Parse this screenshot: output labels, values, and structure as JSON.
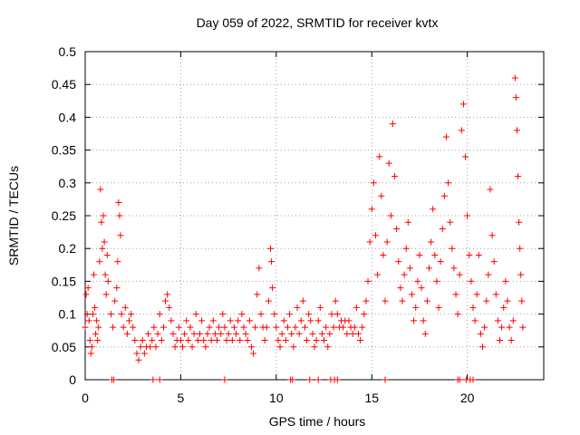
{
  "chart_data": {
    "type": "scatter",
    "title": "Day 059 of 2022, SRMTID for receiver kvtx",
    "xlabel": "GPS time / hours",
    "ylabel": "SRMTID / TECUs",
    "xlim": [
      0,
      24
    ],
    "ylim": [
      0,
      0.5
    ],
    "x_ticks": [
      0,
      5,
      10,
      15,
      20
    ],
    "y_ticks": [
      0,
      0.05,
      0.1,
      0.15,
      0.2,
      0.25,
      0.3,
      0.35,
      0.4,
      0.45,
      0.5
    ],
    "grid": true,
    "marker": "plus",
    "series": [
      {
        "color": "#ff0000",
        "points": [
          [
            0.0,
            0.08
          ],
          [
            0.05,
            0.13
          ],
          [
            0.1,
            0.1
          ],
          [
            0.15,
            0.14
          ],
          [
            0.2,
            0.09
          ],
          [
            0.25,
            0.06
          ],
          [
            0.3,
            0.04
          ],
          [
            0.35,
            0.05
          ],
          [
            0.4,
            0.1
          ],
          [
            0.45,
            0.16
          ],
          [
            0.5,
            0.11
          ],
          [
            0.55,
            0.07
          ],
          [
            0.6,
            0.09
          ],
          [
            0.65,
            0.06
          ],
          [
            0.7,
            0.08
          ],
          [
            0.75,
            0.18
          ],
          [
            0.8,
            0.29
          ],
          [
            0.85,
            0.24
          ],
          [
            0.9,
            0.2
          ],
          [
            0.95,
            0.25
          ],
          [
            1.0,
            0.21
          ],
          [
            1.05,
            0.16
          ],
          [
            1.1,
            0.13
          ],
          [
            1.15,
            0.19
          ],
          [
            1.2,
            0.15
          ],
          [
            1.35,
            0.1
          ],
          [
            1.45,
            0.08
          ],
          [
            1.55,
            0.12
          ],
          [
            1.65,
            0.14
          ],
          [
            1.7,
            0.18
          ],
          [
            1.75,
            0.27
          ],
          [
            1.8,
            0.25
          ],
          [
            1.85,
            0.22
          ],
          [
            1.9,
            0.1
          ],
          [
            2.0,
            0.08
          ],
          [
            2.1,
            0.11
          ],
          [
            2.2,
            0.07
          ],
          [
            2.3,
            0.09
          ],
          [
            2.4,
            0.1
          ],
          [
            2.5,
            0.08
          ],
          [
            2.6,
            0.06
          ],
          [
            2.7,
            0.04
          ],
          [
            2.8,
            0.03
          ],
          [
            2.9,
            0.05
          ],
          [
            3.0,
            0.06
          ],
          [
            3.1,
            0.04
          ],
          [
            3.2,
            0.05
          ],
          [
            3.3,
            0.07
          ],
          [
            3.4,
            0.05
          ],
          [
            3.5,
            0.06
          ],
          [
            3.6,
            0.08
          ],
          [
            3.7,
            0.05
          ],
          [
            3.8,
            0.07
          ],
          [
            3.9,
            0.1
          ],
          [
            4.0,
            0.06
          ],
          [
            4.1,
            0.08
          ],
          [
            4.2,
            0.12
          ],
          [
            4.3,
            0.13
          ],
          [
            4.4,
            0.11
          ],
          [
            4.5,
            0.09
          ],
          [
            4.6,
            0.07
          ],
          [
            4.7,
            0.05
          ],
          [
            4.8,
            0.06
          ],
          [
            4.9,
            0.08
          ],
          [
            5.0,
            0.06
          ],
          [
            5.1,
            0.05
          ],
          [
            5.2,
            0.07
          ],
          [
            5.3,
            0.09
          ],
          [
            5.4,
            0.06
          ],
          [
            5.5,
            0.08
          ],
          [
            5.6,
            0.05
          ],
          [
            5.7,
            0.07
          ],
          [
            5.8,
            0.1
          ],
          [
            5.9,
            0.06
          ],
          [
            6.0,
            0.07
          ],
          [
            6.1,
            0.09
          ],
          [
            6.2,
            0.06
          ],
          [
            6.3,
            0.05
          ],
          [
            6.4,
            0.07
          ],
          [
            6.5,
            0.08
          ],
          [
            6.6,
            0.06
          ],
          [
            6.7,
            0.09
          ],
          [
            6.8,
            0.07
          ],
          [
            6.9,
            0.06
          ],
          [
            7.0,
            0.08
          ],
          [
            7.1,
            0.07
          ],
          [
            7.2,
            0.1
          ],
          [
            7.3,
            0.08
          ],
          [
            7.4,
            0.06
          ],
          [
            7.5,
            0.07
          ],
          [
            7.6,
            0.09
          ],
          [
            7.7,
            0.06
          ],
          [
            7.8,
            0.08
          ],
          [
            7.9,
            0.07
          ],
          [
            8.0,
            0.09
          ],
          [
            8.1,
            0.06
          ],
          [
            8.2,
            0.1
          ],
          [
            8.3,
            0.08
          ],
          [
            8.4,
            0.07
          ],
          [
            8.5,
            0.06
          ],
          [
            8.6,
            0.09
          ],
          [
            8.7,
            0.05
          ],
          [
            8.8,
            0.04
          ],
          [
            8.9,
            0.08
          ],
          [
            9.0,
            0.13
          ],
          [
            9.1,
            0.17
          ],
          [
            9.2,
            0.1
          ],
          [
            9.3,
            0.08
          ],
          [
            9.4,
            0.06
          ],
          [
            9.5,
            0.08
          ],
          [
            9.6,
            0.12
          ],
          [
            9.7,
            0.2
          ],
          [
            9.75,
            0.18
          ],
          [
            9.8,
            0.14
          ],
          [
            9.9,
            0.1
          ],
          [
            10.0,
            0.08
          ],
          [
            10.1,
            0.06
          ],
          [
            10.2,
            0.05
          ],
          [
            10.3,
            0.07
          ],
          [
            10.4,
            0.09
          ],
          [
            10.5,
            0.06
          ],
          [
            10.6,
            0.08
          ],
          [
            10.7,
            0.1
          ],
          [
            10.8,
            0.07
          ],
          [
            10.9,
            0.05
          ],
          [
            11.0,
            0.08
          ],
          [
            11.1,
            0.11
          ],
          [
            11.2,
            0.07
          ],
          [
            11.3,
            0.09
          ],
          [
            11.4,
            0.12
          ],
          [
            11.5,
            0.08
          ],
          [
            11.6,
            0.06
          ],
          [
            11.7,
            0.1
          ],
          [
            11.8,
            0.09
          ],
          [
            11.9,
            0.07
          ],
          [
            12.0,
            0.05
          ],
          [
            12.1,
            0.06
          ],
          [
            12.2,
            0.09
          ],
          [
            12.3,
            0.11
          ],
          [
            12.4,
            0.07
          ],
          [
            12.5,
            0.06
          ],
          [
            12.6,
            0.08
          ],
          [
            12.7,
            0.05
          ],
          [
            12.8,
            0.07
          ],
          [
            12.9,
            0.1
          ],
          [
            13.0,
            0.08
          ],
          [
            13.1,
            0.12
          ],
          [
            13.2,
            0.1
          ],
          [
            13.3,
            0.08
          ],
          [
            13.4,
            0.09
          ],
          [
            13.5,
            0.08
          ],
          [
            13.6,
            0.09
          ],
          [
            13.7,
            0.07
          ],
          [
            13.8,
            0.09
          ],
          [
            13.9,
            0.08
          ],
          [
            14.0,
            0.07
          ],
          [
            14.1,
            0.08
          ],
          [
            14.2,
            0.11
          ],
          [
            14.3,
            0.07
          ],
          [
            14.4,
            0.06
          ],
          [
            14.5,
            0.08
          ],
          [
            14.6,
            0.1
          ],
          [
            14.7,
            0.12
          ],
          [
            14.8,
            0.15
          ],
          [
            14.9,
            0.21
          ],
          [
            15.0,
            0.26
          ],
          [
            15.1,
            0.3
          ],
          [
            15.2,
            0.22
          ],
          [
            15.3,
            0.16
          ],
          [
            15.4,
            0.34
          ],
          [
            15.5,
            0.28
          ],
          [
            15.6,
            0.19
          ],
          [
            15.7,
            0.12
          ],
          [
            15.8,
            0.21
          ],
          [
            15.9,
            0.33
          ],
          [
            16.0,
            0.25
          ],
          [
            16.1,
            0.39
          ],
          [
            16.2,
            0.31
          ],
          [
            16.3,
            0.23
          ],
          [
            16.4,
            0.18
          ],
          [
            16.5,
            0.14
          ],
          [
            16.6,
            0.12
          ],
          [
            16.7,
            0.16
          ],
          [
            16.8,
            0.2
          ],
          [
            16.9,
            0.24
          ],
          [
            17.0,
            0.17
          ],
          [
            17.1,
            0.13
          ],
          [
            17.2,
            0.09
          ],
          [
            17.3,
            0.11
          ],
          [
            17.4,
            0.15
          ],
          [
            17.5,
            0.19
          ],
          [
            17.6,
            0.14
          ],
          [
            17.7,
            0.09
          ],
          [
            17.8,
            0.07
          ],
          [
            17.9,
            0.12
          ],
          [
            18.0,
            0.17
          ],
          [
            18.1,
            0.21
          ],
          [
            18.2,
            0.26
          ],
          [
            18.3,
            0.19
          ],
          [
            18.4,
            0.15
          ],
          [
            18.5,
            0.11
          ],
          [
            18.6,
            0.18
          ],
          [
            18.7,
            0.23
          ],
          [
            18.8,
            0.28
          ],
          [
            18.9,
            0.37
          ],
          [
            19.0,
            0.3
          ],
          [
            19.1,
            0.24
          ],
          [
            19.2,
            0.2
          ],
          [
            19.3,
            0.17
          ],
          [
            19.4,
            0.13
          ],
          [
            19.5,
            0.1
          ],
          [
            19.6,
            0.16
          ],
          [
            19.7,
            0.38
          ],
          [
            19.8,
            0.42
          ],
          [
            19.9,
            0.34
          ],
          [
            20.0,
            0.25
          ],
          [
            20.1,
            0.19
          ],
          [
            20.2,
            0.15
          ],
          [
            20.3,
            0.11
          ],
          [
            20.4,
            0.09
          ],
          [
            20.5,
            0.13
          ],
          [
            20.6,
            0.19
          ],
          [
            20.7,
            0.07
          ],
          [
            20.8,
            0.05
          ],
          [
            20.9,
            0.08
          ],
          [
            21.0,
            0.12
          ],
          [
            21.1,
            0.16
          ],
          [
            21.2,
            0.29
          ],
          [
            21.3,
            0.22
          ],
          [
            21.4,
            0.18
          ],
          [
            21.5,
            0.13
          ],
          [
            21.6,
            0.09
          ],
          [
            21.7,
            0.06
          ],
          [
            21.8,
            0.08
          ],
          [
            21.9,
            0.11
          ],
          [
            22.0,
            0.15
          ],
          [
            22.1,
            0.12
          ],
          [
            22.2,
            0.08
          ],
          [
            22.3,
            0.06
          ],
          [
            22.4,
            0.09
          ],
          [
            22.5,
            0.46
          ],
          [
            22.55,
            0.43
          ],
          [
            22.6,
            0.38
          ],
          [
            22.65,
            0.31
          ],
          [
            22.7,
            0.24
          ],
          [
            22.75,
            0.2
          ],
          [
            22.8,
            0.16
          ],
          [
            22.85,
            0.12
          ],
          [
            22.9,
            0.08
          ],
          [
            1.4,
            0.0
          ],
          [
            1.5,
            0.0
          ],
          [
            3.55,
            0.0
          ],
          [
            3.9,
            0.0
          ],
          [
            7.3,
            0.0
          ],
          [
            10.75,
            0.0
          ],
          [
            10.85,
            0.0
          ],
          [
            11.75,
            0.0
          ],
          [
            12.2,
            0.0
          ],
          [
            12.85,
            0.0
          ],
          [
            13.05,
            0.0
          ],
          [
            13.2,
            0.0
          ],
          [
            15.7,
            0.0
          ],
          [
            19.5,
            0.0
          ],
          [
            19.6,
            0.0
          ],
          [
            19.95,
            0.0
          ],
          [
            20.15,
            0.0
          ],
          [
            20.3,
            0.0
          ]
        ]
      }
    ]
  }
}
